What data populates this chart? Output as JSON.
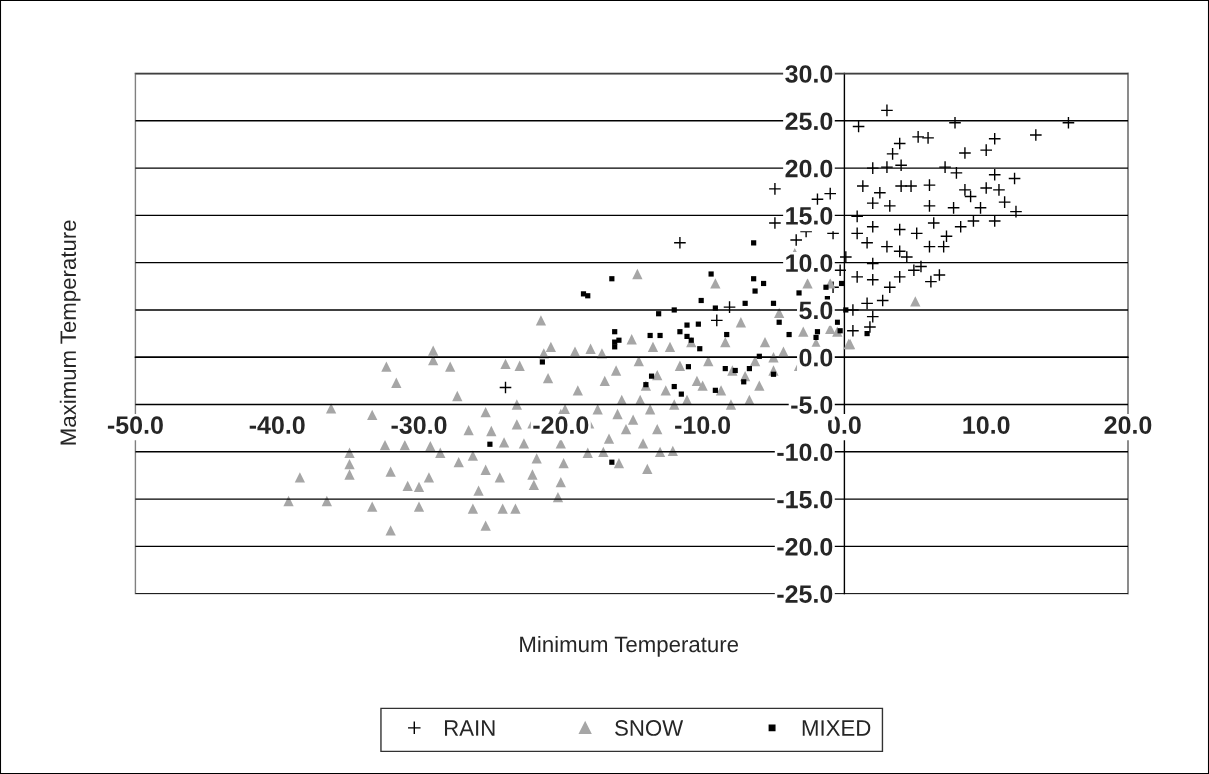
{
  "chart_data": {
    "type": "scatter",
    "xlabel": "Minimum Temperature",
    "ylabel": "Maximum Temperature",
    "xlim": [
      -50,
      20
    ],
    "ylim": [
      -25,
      30
    ],
    "xticks": [
      {
        "value": -50,
        "label": "-50.0"
      },
      {
        "value": -40,
        "label": "-40.0"
      },
      {
        "value": -30,
        "label": "-30.0"
      },
      {
        "value": -20,
        "label": "-20.0"
      },
      {
        "value": -10,
        "label": "-10.0"
      },
      {
        "value": 0,
        "label": "0.0"
      },
      {
        "value": 10,
        "label": "10.0"
      },
      {
        "value": 20,
        "label": "20.0"
      }
    ],
    "yticks": [
      {
        "value": -25,
        "label": "-25.0"
      },
      {
        "value": -20,
        "label": "-20.0"
      },
      {
        "value": -15,
        "label": "-15.0"
      },
      {
        "value": -10,
        "label": "-10.0"
      },
      {
        "value": -5,
        "label": "-5.0"
      },
      {
        "value": 0,
        "label": "0.0"
      },
      {
        "value": 5,
        "label": "5.0"
      },
      {
        "value": 10,
        "label": "10.0"
      },
      {
        "value": 15,
        "label": "15.0"
      },
      {
        "value": 20,
        "label": "20.0"
      },
      {
        "value": 25,
        "label": "25.0"
      },
      {
        "value": 30,
        "label": "30.0"
      }
    ],
    "grid": "y",
    "legend": "bottom",
    "series": [
      {
        "name": "RAIN",
        "color": "#000000",
        "marker": "cross",
        "x": [
          3.0,
          1.0,
          7.8,
          15.8,
          13.5,
          10.6,
          5.2,
          5.9,
          3.9,
          3.4,
          8.5,
          10.0,
          2.0,
          3.0,
          4.0,
          7.1,
          7.9,
          10.6,
          12.0,
          1.3,
          2.5,
          4.0,
          4.7,
          6.0,
          8.5,
          10.0,
          10.9,
          8.9,
          11.3,
          12.1,
          10.6,
          9.1,
          9.6,
          7.7,
          6.0,
          3.2,
          2.0,
          0.9,
          -1.9,
          -1.0,
          -4.9,
          -4.9,
          -3.4,
          -2.7,
          -0.8,
          0.9,
          2.0,
          3.9,
          5.1,
          6.3,
          7.2,
          6.0,
          3.9,
          3.0,
          1.6,
          0.1,
          2.0,
          4.4,
          5.4,
          6.7,
          6.1,
          3.9,
          3.2,
          2.0,
          0.9,
          -0.3,
          2.7,
          1.6,
          2.0,
          1.8,
          0.6,
          -0.8,
          8.2,
          7.0,
          4.9,
          0.6,
          -11.6,
          -23.9,
          -8.1,
          -9.0
        ],
        "values": [
          26.1,
          24.4,
          24.8,
          24.8,
          23.5,
          23.1,
          23.3,
          23.2,
          22.6,
          21.5,
          21.6,
          21.9,
          20.0,
          20.1,
          20.3,
          20.1,
          19.5,
          19.3,
          18.9,
          18.1,
          17.4,
          18.1,
          18.1,
          18.2,
          17.7,
          17.9,
          17.7,
          17.0,
          16.4,
          15.4,
          14.4,
          14.4,
          15.8,
          15.8,
          16.0,
          16.0,
          16.3,
          14.9,
          16.7,
          17.3,
          17.8,
          14.2,
          12.4,
          13.3,
          13.1,
          13.1,
          13.8,
          13.5,
          13.1,
          14.2,
          12.8,
          11.7,
          11.2,
          11.7,
          12.1,
          10.6,
          9.9,
          10.6,
          9.6,
          8.7,
          8.0,
          8.5,
          7.4,
          8.2,
          8.5,
          9.2,
          6.0,
          5.7,
          4.3,
          3.2,
          2.8,
          7.4,
          13.8,
          11.7,
          9.2,
          5.0,
          12.1,
          -3.2,
          5.3,
          3.9
        ]
      },
      {
        "name": "SNOW",
        "color": "#a6a6a6",
        "marker": "triangle",
        "x": [
          -39.2,
          -38.4,
          -36.5,
          -36.2,
          -34.9,
          -34.9,
          -34.9,
          -33.3,
          -33.3,
          -32.3,
          -32.0,
          -32.4,
          -32.0,
          -31.6,
          -31.0,
          -30.8,
          -30.0,
          -30.0,
          -29.3,
          -29.0,
          -29.0,
          -29.2,
          -28.5,
          -27.8,
          -27.3,
          -27.2,
          -26.5,
          -26.2,
          -26.2,
          -25.8,
          -25.3,
          -25.3,
          -25.3,
          -24.9,
          -24.3,
          -24.1,
          -23.9,
          -23.2,
          -23.1,
          -23.1,
          -22.9,
          -22.6,
          -22.0,
          -21.9,
          -21.7,
          -21.4,
          -21.2,
          -20.9,
          -20.7,
          -20.2,
          -20.0,
          -20.0,
          -19.8,
          -19.7,
          -19.0,
          -18.8,
          -18.1,
          -17.9,
          -17.4,
          -17.1,
          -16.9,
          -16.6,
          -16.1,
          -15.9,
          -15.7,
          -15.4,
          -15.0,
          -14.9,
          -14.6,
          -14.5,
          -14.4,
          -14.2,
          -13.9,
          -13.7,
          -13.5,
          -13.2,
          -13.2,
          -12.6,
          -12.3,
          -12.1,
          -11.6,
          -11.1,
          -10.8,
          -10.4,
          -9.6,
          -9.1,
          -8.7,
          -8.4,
          -7.9,
          -7.3,
          -6.7,
          -6.3,
          -5.6,
          -5.0,
          -4.6,
          -4.3,
          -3.2,
          -2.9,
          -2.6,
          -1.0,
          -0.5,
          0.3,
          5.0,
          -3.5,
          0.4,
          -20.0,
          -18.0,
          -16.0,
          -14.0,
          -12.0,
          -10.0,
          -8.0,
          -7.0,
          -6.0,
          -5.0,
          -2.0,
          -1.0,
          -22.0,
          -24.0,
          -17.0,
          -13.0
        ],
        "values": [
          -15.2,
          -12.7,
          -15.2,
          -5.4,
          -10.1,
          -11.3,
          -12.4,
          -6.1,
          -15.8,
          -1.0,
          -18.3,
          -9.3,
          -12.1,
          -2.7,
          -9.3,
          -13.6,
          -13.7,
          -15.8,
          -12.7,
          0.7,
          -0.3,
          -9.4,
          -10.1,
          -1.0,
          -4.1,
          -11.1,
          -7.7,
          -16.0,
          -10.4,
          -14.1,
          -17.8,
          -11.9,
          -5.8,
          -7.8,
          -12.7,
          -16.0,
          -0.7,
          -16.0,
          -7.1,
          -5.0,
          -0.9,
          -9.1,
          -12.4,
          -13.5,
          -10.7,
          3.9,
          0.4,
          -2.2,
          1.1,
          -14.8,
          -13.2,
          -9.1,
          -11.2,
          -5.5,
          0.6,
          -3.5,
          -10.1,
          0.9,
          -5.5,
          0.4,
          -2.5,
          -8.6,
          -1.4,
          -11.2,
          -4.5,
          -7.6,
          1.9,
          -6.6,
          8.8,
          -0.4,
          -4.5,
          -9.1,
          -11.8,
          -5.5,
          1.1,
          -1.9,
          -7.6,
          -3.5,
          1.1,
          -9.9,
          -0.9,
          -4.5,
          1.6,
          -2.5,
          -0.4,
          7.8,
          -3.5,
          1.6,
          -1.4,
          3.7,
          -4.5,
          -0.4,
          1.6,
          -1.4,
          4.7,
          0.6,
          -0.9,
          2.7,
          7.8,
          7.8,
          2.7,
          1.4,
          5.9,
          11.0,
          1.4,
          -6.0,
          -7.0,
          -6.0,
          -3.0,
          -5.0,
          -3.0,
          -5.0,
          -2.0,
          -3.0,
          0.0,
          1.5,
          3.0,
          -7.0,
          -9.0,
          -10.0,
          -10.0
        ]
      },
      {
        "name": "MIXED",
        "color": "#000000",
        "marker": "square",
        "x": [
          -16.4,
          -18.4,
          -18.1,
          -16.2,
          -16.2,
          -15.9,
          -16.2,
          -13.7,
          -13.0,
          -13.1,
          -12.0,
          -11.6,
          -11.1,
          -10.8,
          -11.1,
          -10.3,
          -10.1,
          -9.4,
          -9.1,
          -8.3,
          -6.4,
          -6.4,
          -7.0,
          -6.3,
          -5.7,
          -5.0,
          -4.6,
          -3.9,
          -3.2,
          -1.9,
          -1.2,
          -0.5,
          -0.2,
          -10.2,
          -8.4,
          -7.7,
          -7.1,
          -6.7,
          -6.0,
          -5.0,
          -11.0,
          -13.6,
          -14.0,
          -12.0,
          -11.5,
          -9.1,
          -21.3,
          -25.0,
          -16.4,
          1.6,
          0.1,
          -1.3,
          -0.3,
          -2.0
        ],
        "values": [
          8.3,
          6.7,
          6.5,
          2.7,
          1.6,
          1.8,
          1.1,
          2.3,
          2.3,
          4.6,
          5.0,
          2.7,
          2.2,
          1.8,
          3.4,
          3.5,
          6.0,
          8.8,
          5.2,
          2.4,
          12.1,
          8.3,
          5.7,
          7.0,
          7.8,
          5.7,
          3.7,
          2.4,
          6.8,
          2.7,
          6.2,
          3.7,
          7.8,
          0.9,
          -1.2,
          -1.4,
          -2.6,
          -1.2,
          0.1,
          -1.8,
          -1.0,
          -2.0,
          -2.9,
          -3.1,
          -3.9,
          -3.5,
          -0.5,
          -9.2,
          -11.1,
          2.5,
          5.0,
          7.4,
          2.8,
          2.1
        ]
      }
    ]
  }
}
